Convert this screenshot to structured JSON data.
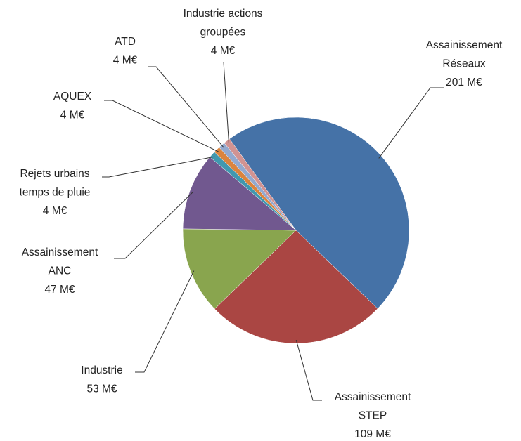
{
  "chart_data": {
    "type": "pie",
    "categories": [
      "Assainissement\nRéseaux",
      "Assainissement\nSTEP",
      "Industrie",
      "Assainissement\nANC",
      "Rejets urbains\ntemps de pluie",
      "AQUEX",
      "ATD",
      "Industrie actions\ngroupées"
    ],
    "values": [
      201,
      109,
      53,
      47,
      4,
      4,
      4,
      4
    ],
    "value_labels": [
      "201 M€",
      "109 M€",
      "53 M€",
      "47 M€",
      "4 M€",
      "4 M€",
      "4 M€",
      "4 M€"
    ],
    "colors": [
      "#4572a7",
      "#aa4643",
      "#89a54e",
      "#71588f",
      "#4198af",
      "#db843d",
      "#93a9cf",
      "#d19392"
    ]
  }
}
